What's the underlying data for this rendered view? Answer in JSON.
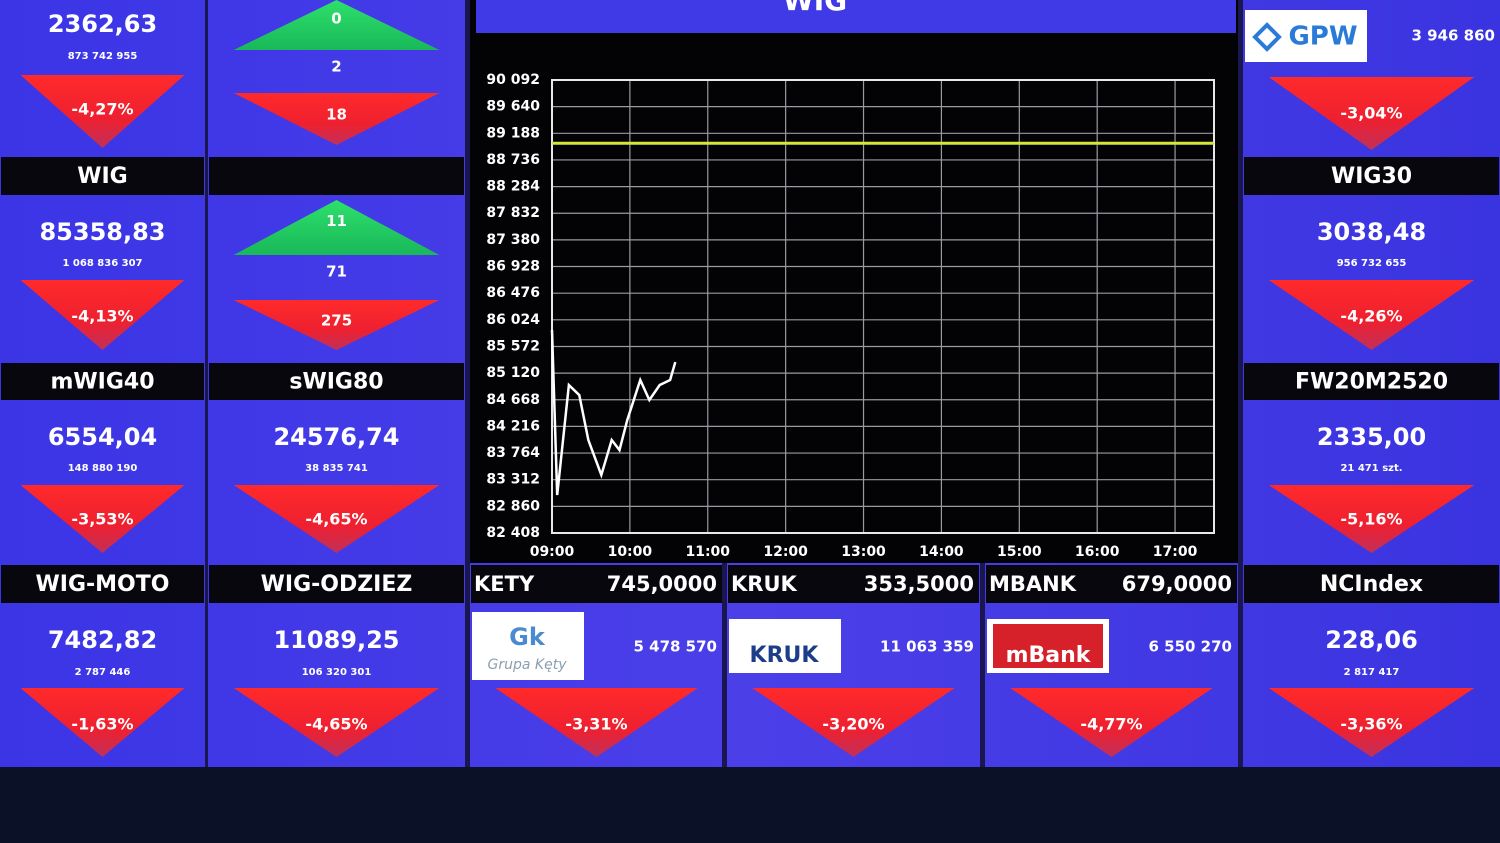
{
  "index_tiles": [
    {
      "value": "2362,63",
      "volume": "873 742 955",
      "change": "-4,27%"
    },
    {
      "name": "WIG",
      "value": "85358,83",
      "volume": "1 068 836 307",
      "change": "-4,13%"
    },
    {
      "name": "mWIG40",
      "value": "6554,04",
      "volume": "148 880 190",
      "change": "-3,53%"
    },
    {
      "name": "sWIG80",
      "value": "24576,74",
      "volume": "38 835 741",
      "change": "-4,65%"
    },
    {
      "logo": "GPW",
      "volume": "3 946 860",
      "change": "-3,04%"
    },
    {
      "name": "WIG30",
      "value": "3038,48",
      "volume": "956 732 655",
      "change": "-4,26%"
    },
    {
      "name": "FW20M2520",
      "value": "2335,00",
      "volume": "21 471 szt.",
      "change": "-5,16%"
    },
    {
      "name": "WIG-MOTO",
      "value": "7482,82",
      "volume": "2 787 446",
      "change": "-1,63%"
    },
    {
      "name": "WIG-ODZIEZ",
      "value": "11089,25",
      "volume": "106 320 301",
      "change": "-4,65%"
    },
    {
      "name": "NCIndex",
      "value": "228,06",
      "volume": "2 817 417",
      "change": "-3,36%"
    }
  ],
  "stock_tiles": [
    {
      "name": "KETY",
      "price": "745,0000",
      "logo": "Gk",
      "logo_caption": "Grupa Kęty",
      "volume": "5 478 570",
      "change": "-3,31%"
    },
    {
      "name": "KRUK",
      "price": "353,5000",
      "logo": "KRUK",
      "volume": "11 063 359",
      "change": "-3,20%"
    },
    {
      "name": "MBANK",
      "price": "679,0000",
      "logo": "mBank",
      "volume": "6 550 270",
      "change": "-4,77%"
    }
  ],
  "breadth": [
    {
      "advancing": 0,
      "unchanged": 2,
      "declining": 18
    },
    {
      "advancing": 11,
      "unchanged": 71,
      "declining": 275
    }
  ],
  "chart_data": {
    "type": "line",
    "title": "WIG",
    "x": [
      "09:00",
      "09:04",
      "09:13",
      "09:21",
      "09:28",
      "09:38",
      "09:46",
      "09:52",
      "09:58",
      "10:08",
      "10:15",
      "10:23",
      "10:31",
      "10:35"
    ],
    "values": [
      85851,
      83052,
      84918,
      84748,
      83985,
      83392,
      83985,
      83815,
      84325,
      85003,
      84664,
      84918,
      85003,
      85308
    ],
    "color": "#ffffff",
    "reference_line": 89020,
    "reference_color": "#d4e83a",
    "xlim": [
      "09:00",
      "17:30"
    ],
    "xticks": [
      "09:00",
      "10:00",
      "11:00",
      "12:00",
      "13:00",
      "14:00",
      "15:00",
      "16:00",
      "17:00"
    ],
    "ylim": [
      82408,
      90092
    ],
    "yticks": [
      {
        "value": 82408,
        "label": "82 408"
      },
      {
        "value": 82860,
        "label": "82 860"
      },
      {
        "value": 83312,
        "label": "83 312"
      },
      {
        "value": 83764,
        "label": "83 764"
      },
      {
        "value": 84216,
        "label": "84 216"
      },
      {
        "value": 84668,
        "label": "84 668"
      },
      {
        "value": 85120,
        "label": "85 120"
      },
      {
        "value": 85572,
        "label": "85 572"
      },
      {
        "value": 86024,
        "label": "86 024"
      },
      {
        "value": 86476,
        "label": "86 476"
      },
      {
        "value": 86928,
        "label": "86 928"
      },
      {
        "value": 87380,
        "label": "87 380"
      },
      {
        "value": 87832,
        "label": "87 832"
      },
      {
        "value": 88284,
        "label": "88 284"
      },
      {
        "value": 88736,
        "label": "88 736"
      },
      {
        "value": 89188,
        "label": "89 188"
      },
      {
        "value": 89640,
        "label": "89 640"
      },
      {
        "value": 90092,
        "label": "90 092"
      }
    ],
    "grid": true
  }
}
